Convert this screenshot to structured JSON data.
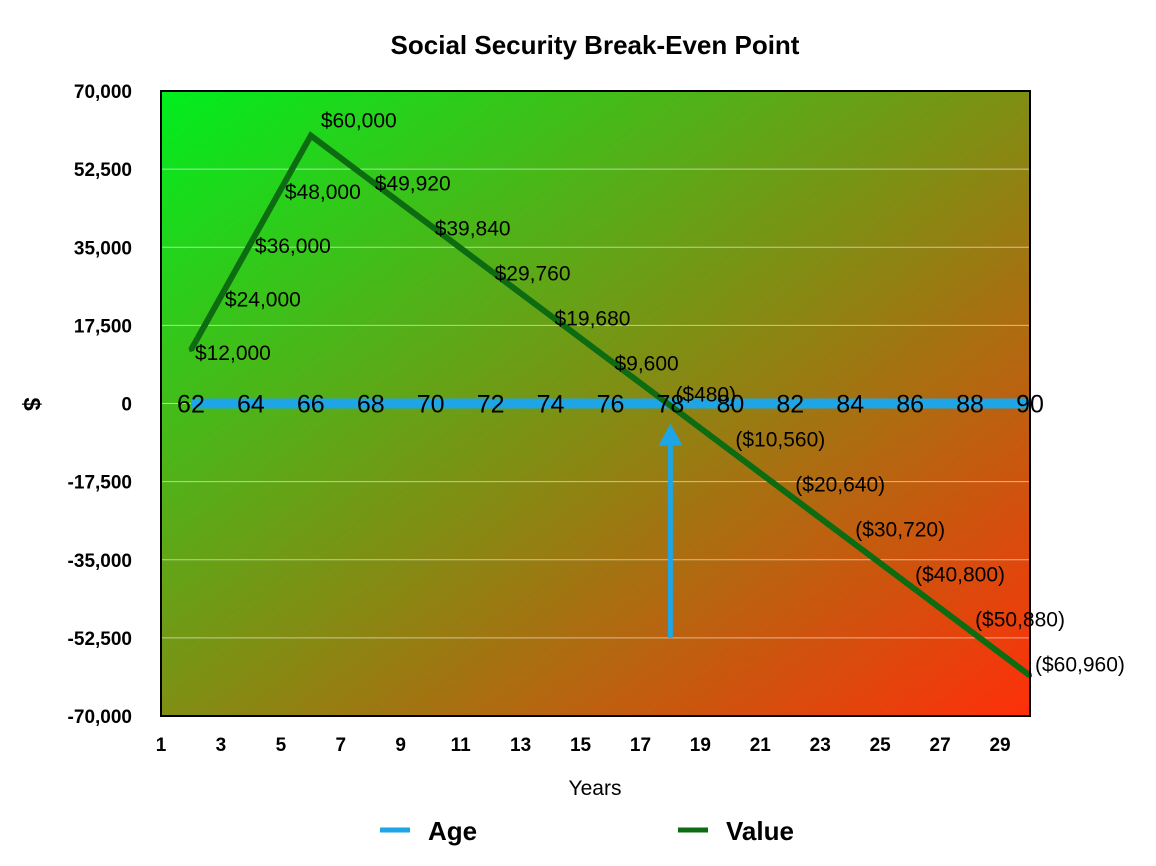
{
  "chart_data": {
    "type": "line",
    "title": "Social Security Break-Even Point",
    "xlabel": "Years",
    "ylabel": "$",
    "xlim": [
      1,
      30
    ],
    "ylim": [
      -70000,
      70000
    ],
    "grid": true,
    "legend_position": "bottom",
    "x_ticks": [
      "1",
      "3",
      "5",
      "7",
      "9",
      "11",
      "13",
      "15",
      "17",
      "19",
      "21",
      "23",
      "25",
      "27",
      "29"
    ],
    "y_ticks": [
      "70,000",
      "52,500",
      "35,000",
      "17,500",
      "0",
      "-17,500",
      "-35,000",
      "-52,500",
      "-70,000"
    ],
    "series": [
      {
        "name": "Age",
        "color": "#1ea5e6",
        "x": [
          2,
          30
        ],
        "y": [
          0,
          0
        ],
        "point_labels": {
          "x": [
            2,
            4,
            6,
            8,
            10,
            12,
            14,
            16,
            18,
            20,
            22,
            24,
            26,
            28,
            30
          ],
          "labels": [
            "62",
            "64",
            "66",
            "68",
            "70",
            "72",
            "74",
            "76",
            "78",
            "80",
            "82",
            "84",
            "86",
            "88",
            "90"
          ]
        }
      },
      {
        "name": "Value",
        "color": "#0d6b12",
        "x": [
          2,
          3,
          4,
          5,
          6,
          8,
          10,
          12,
          14,
          16,
          18,
          20,
          22,
          24,
          26,
          28,
          30
        ],
        "y": [
          12000,
          24000,
          36000,
          48000,
          60000,
          49920,
          39840,
          29760,
          19680,
          9600,
          -480,
          -10560,
          -20640,
          -30720,
          -40800,
          -50880,
          -60960
        ],
        "data_labels": [
          "$12,000",
          "$24,000",
          "$36,000",
          "$48,000",
          "$60,000",
          "$49,920",
          "$39,840",
          "$29,760",
          "$19,680",
          "$9,600",
          "($480)",
          "($10,560)",
          "($20,640)",
          "($30,720)",
          "($40,800)",
          "($50,880)",
          "($60,960)"
        ]
      }
    ],
    "annotations": [
      {
        "type": "arrow",
        "x": 18,
        "y_from": -52500,
        "y_to": -4500,
        "color": "#1ea5e6"
      }
    ],
    "background_gradient": {
      "top_left": "#00ee1e",
      "bottom_right": "#ff2f0a"
    }
  }
}
